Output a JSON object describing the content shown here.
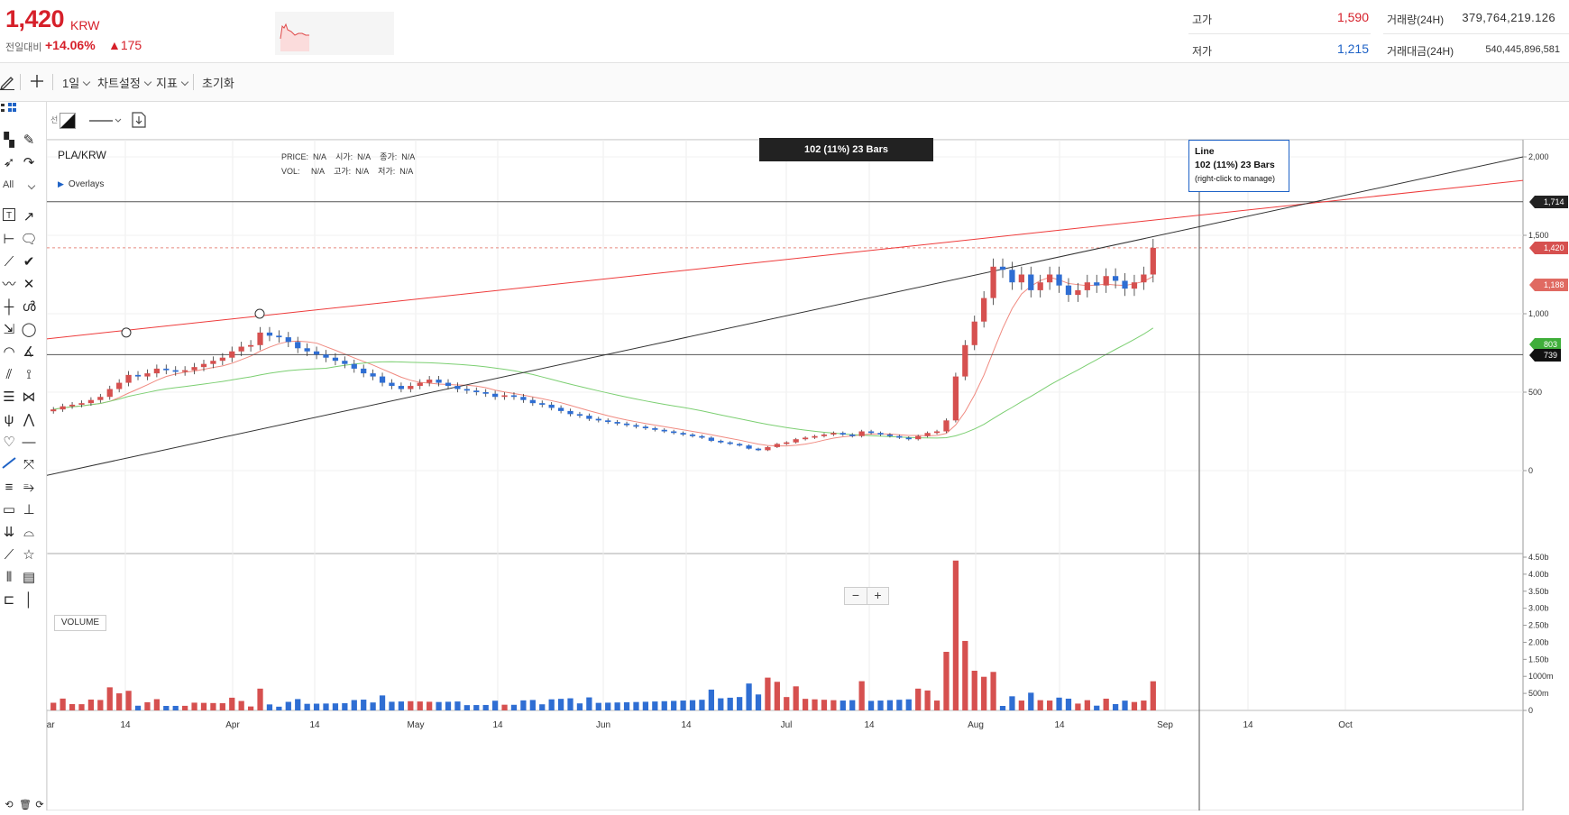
{
  "header": {
    "price": "1,420",
    "currency": "KRW",
    "change_label": "전일대비",
    "change_pct": "+14.06%",
    "change_abs": "▲175",
    "high_label": "고가",
    "high_value": "1,590",
    "low_label": "저가",
    "low_value": "1,215",
    "volume_label": "거래량(24H)",
    "volume_value": "379,764,219.126",
    "turnover_label": "거래대금(24H)",
    "turnover_value": "540,445,896,581",
    "colors": {
      "up": "#d6202a",
      "down": "#1e62c6"
    }
  },
  "toolbar": {
    "draw_icon": "pencil-icon",
    "crosshair_icon": "crosshair-icon",
    "period": "1일",
    "chart_settings": "차트설정",
    "indicators": "지표",
    "reset": "초기화"
  },
  "subtoolbar": {
    "line_label": "선",
    "fill_icon": "fill-color-icon",
    "line_style_icon": "line-style-icon",
    "save_icon": "save-template-icon"
  },
  "toolbox": {
    "all_label": "All",
    "icons": [
      "layout-icon",
      "pen-icon",
      "cursor-icon",
      "curve-icon",
      "text-icon",
      "arrow-icon",
      "ray-icon",
      "callout-icon",
      "trendline-icon",
      "check-icon",
      "polyline-icon",
      "cross-icon",
      "crosshair-tool-icon",
      "brush-icon",
      "pattern-icon",
      "ellipse-icon",
      "arc-icon",
      "angle-icon",
      "channel-icon",
      "fan-icon",
      "fib-icon",
      "projection-icon",
      "pitchfork-icon",
      "wave-icon",
      "heart-icon",
      "hline-icon",
      "line-icon",
      "measure-icon",
      "lines-icon",
      "extended-icon",
      "rectangle-icon",
      "range-icon",
      "vline-icon",
      "gann-icon",
      "star-icon",
      "grid-icon",
      "table-icon",
      "ruler-icon",
      "vertical-icon",
      "bottom-undo-icon",
      "bottom-delete-icon"
    ]
  },
  "chart": {
    "symbol": "PLA/KRW",
    "ohlc_labels": [
      "PRICE:",
      "N/A",
      "시가:",
      "N/A",
      "종가:",
      "N/A"
    ],
    "vol_labels": [
      "VOL:",
      "N/A",
      "고가:",
      "N/A",
      "저가:",
      "N/A"
    ],
    "overlays_label": "Overlays",
    "measure_badge": "102 (11%) 23 Bars",
    "line_tooltip": {
      "title": "Line",
      "value": "102 (11%) 23 Bars",
      "hint": "(right-click to manage)"
    },
    "zoom_minus": "−",
    "zoom_plus": "+",
    "volume_label": "VOLUME",
    "price_axis_labels": [
      "2,000",
      "1,500",
      "1,000",
      "500",
      "0"
    ],
    "volume_axis_labels": [
      "4.50b",
      "4.00b",
      "3.50b",
      "3.00b",
      "2.50b",
      "2.00b",
      "1.50b",
      "1000m",
      "500m",
      "0"
    ],
    "x_axis_labels": [
      "Mar",
      "14",
      "Apr",
      "14",
      "May",
      "14",
      "Jun",
      "14",
      "Jul",
      "14",
      "Aug",
      "14",
      "Sep",
      "14",
      "Oct"
    ],
    "price_tags": {
      "crosshair": "1,714",
      "last": "1,420",
      "ma_short": "1,188",
      "ma_long": "803",
      "hline": "739"
    },
    "colors": {
      "up": "#d6504f",
      "down": "#2f6ed3",
      "ma_short": "#f08a80",
      "ma_long": "#7ccf72",
      "trend_red": "#ee3b3b",
      "trend_black": "#333333"
    }
  },
  "chart_data": {
    "type": "candlestick",
    "symbol": "PLA/KRW",
    "x_range": [
      "Mar",
      "Oct"
    ],
    "ylim": [
      0,
      2000
    ],
    "series": [
      {
        "name": "price",
        "points_summary": "approx. daily closes",
        "values": [
          390,
          410,
          420,
          430,
          450,
          470,
          520,
          560,
          610,
          600,
          620,
          650,
          640,
          630,
          640,
          660,
          680,
          700,
          720,
          760,
          790,
          800,
          880,
          860,
          850,
          820,
          780,
          760,
          740,
          720,
          700,
          680,
          650,
          620,
          600,
          560,
          540,
          520,
          540,
          560,
          580,
          560,
          540,
          520,
          510,
          500,
          490,
          470,
          480,
          470,
          450,
          430,
          420,
          400,
          380,
          360,
          350,
          330,
          320,
          310,
          300,
          290,
          280,
          270,
          260,
          250,
          240,
          230,
          220,
          210,
          190,
          180,
          170,
          160,
          140,
          130,
          150,
          170,
          180,
          200,
          210,
          220,
          230,
          240,
          230,
          220,
          250,
          240,
          230,
          220,
          210,
          200,
          220,
          240,
          250,
          320,
          600,
          800,
          950,
          1100,
          1300,
          1280,
          1200,
          1250,
          1150,
          1200,
          1250,
          1180,
          1120,
          1150,
          1200,
          1180,
          1240,
          1210,
          1160,
          1200,
          1250,
          1420
        ]
      }
    ],
    "volume_ylim": [
      0,
      4500000000
    ],
    "horizontal_lines": [
      1714,
      739
    ],
    "last_price": 1420
  }
}
